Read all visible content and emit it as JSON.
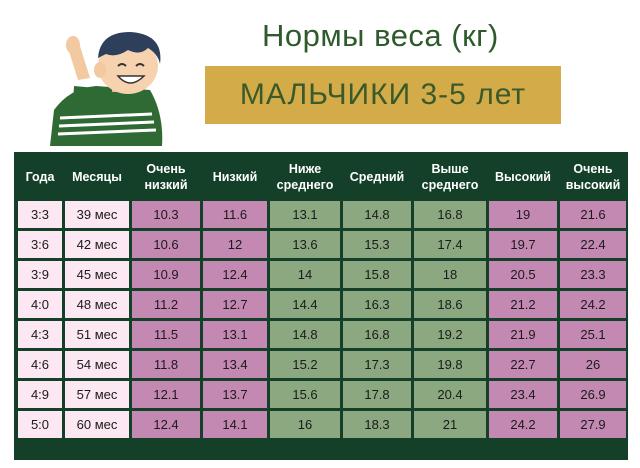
{
  "title": "Нормы веса (кг)",
  "banner": "МАЛЬЧИКИ  3-5 лет",
  "colors": {
    "header_bg": "#14402a",
    "title_green": "#2e5a2c",
    "banner_gold": "#d4ab49",
    "light_pink": "#fbe8f2",
    "pink": "#c489b3",
    "green": "#8ba881"
  },
  "columns": [
    {
      "label": "Года",
      "width": 44,
      "style": "lt"
    },
    {
      "label": "Месяцы",
      "width": 64,
      "style": "lt"
    },
    {
      "label": "Очень низкий",
      "width": 68,
      "style": "pk"
    },
    {
      "label": "Низкий",
      "width": 64,
      "style": "pk"
    },
    {
      "label": "Ниже среднего",
      "width": 70,
      "style": "gr"
    },
    {
      "label": "Средний",
      "width": 68,
      "style": "gr"
    },
    {
      "label": "Выше среднего",
      "width": 72,
      "style": "gr"
    },
    {
      "label": "Высокий",
      "width": 68,
      "style": "pk"
    },
    {
      "label": "Очень высокий",
      "width": 66,
      "style": "pk"
    }
  ],
  "rows": [
    [
      "3:3",
      "39 мес",
      "10.3",
      "11.6",
      "13.1",
      "14.8",
      "16.8",
      "19",
      "21.6"
    ],
    [
      "3:6",
      "42 мес",
      "10.6",
      "12",
      "13.6",
      "15.3",
      "17.4",
      "19.7",
      "22.4"
    ],
    [
      "3:9",
      "45 мес",
      "10.9",
      "12.4",
      "14",
      "15.8",
      "18",
      "20.5",
      "23.3"
    ],
    [
      "4:0",
      "48 мес",
      "11.2",
      "12.7",
      "14.4",
      "16.3",
      "18.6",
      "21.2",
      "24.2"
    ],
    [
      "4:3",
      "51 мес",
      "11.5",
      "13.1",
      "14.8",
      "16.8",
      "19.2",
      "21.9",
      "25.1"
    ],
    [
      "4:6",
      "54 мес",
      "11.8",
      "13.4",
      "15.2",
      "17.3",
      "19.8",
      "22.7",
      "26"
    ],
    [
      "4:9",
      "57 мес",
      "12.1",
      "13.7",
      "15.6",
      "17.8",
      "20.4",
      "23.4",
      "26.9"
    ],
    [
      "5:0",
      "60 мес",
      "12.4",
      "14.1",
      "16",
      "18.3",
      "21",
      "24.2",
      "27.9"
    ]
  ]
}
